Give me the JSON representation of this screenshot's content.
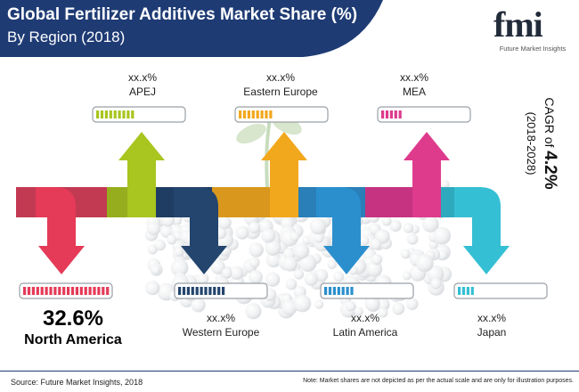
{
  "header": {
    "title": "Global Fertilizer Additives Market Share (%)",
    "subtitle": "By Region (2018)"
  },
  "logo": {
    "word": "fmi",
    "tagline": "Future Market Insights"
  },
  "cagr": {
    "prefix": "CAGR of",
    "value": "4.2%",
    "period": "(2018-2028)"
  },
  "chart_data": {
    "type": "bar",
    "categories": [
      "APEJ",
      "Eastern Europe",
      "MEA",
      "North America",
      "Western Europe",
      "Latin America",
      "Japan"
    ],
    "series": [
      {
        "labels": [
          "xx.x%",
          "xx.x%",
          "xx.x%",
          "32.6%",
          "xx.x%",
          "xx.x%",
          "xx.x%"
        ],
        "values": [
          null,
          null,
          null,
          32.6,
          null,
          null,
          null
        ]
      }
    ],
    "indicator_fill_segments": [
      9,
      8,
      5,
      20,
      11,
      7,
      4
    ],
    "colors": {
      "APEJ": "#a8c520",
      "Eastern Europe": "#f2a81d",
      "MEA": "#de3b8d",
      "North America": "#e53a58",
      "Western Europe": "#23456e",
      "Latin America": "#2b8fce",
      "Japan": "#35bfd4"
    }
  },
  "regions": {
    "apej": {
      "value": "xx.x%",
      "name": "APEJ"
    },
    "eastern_europe": {
      "value": "xx.x%",
      "name": "Eastern Europe"
    },
    "mea": {
      "value": "xx.x%",
      "name": "MEA"
    },
    "north_america": {
      "value": "32.6%",
      "name": "North America"
    },
    "western_europe": {
      "value": "xx.x%",
      "name": "Western Europe"
    },
    "latin_america": {
      "value": "xx.x%",
      "name": "Latin America"
    },
    "japan": {
      "value": "xx.x%",
      "name": "Japan"
    }
  },
  "footer": {
    "source": "Source: Future Market Insights, 2018",
    "note": "Note: Market shares are not depicted as per the actual scale and are only for illustration purposes."
  }
}
